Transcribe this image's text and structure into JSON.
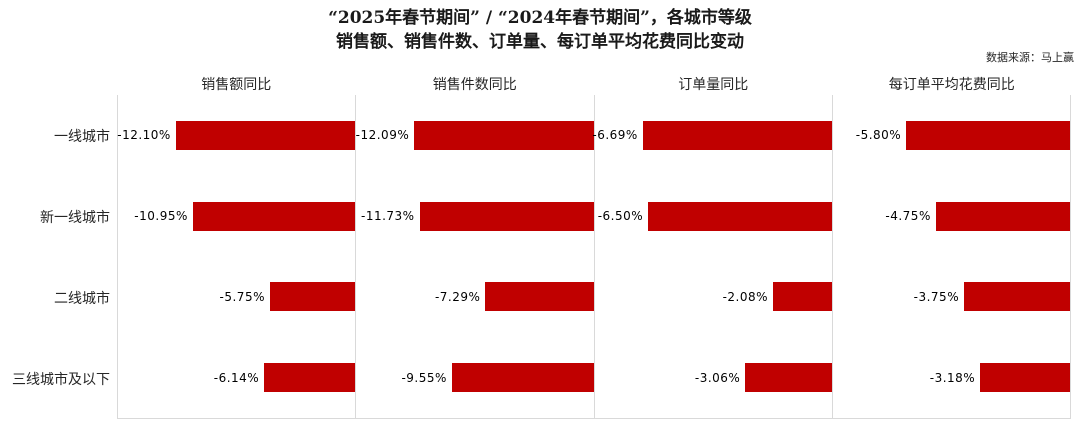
{
  "title": {
    "line1": "“2025年春节期间” / “2024年春节期间”，各城市等级",
    "line2": "销售额、销售件数、订单量、每订单平均花费同比变动"
  },
  "source": "数据来源：马上赢",
  "colors": {
    "bar": "#c00000",
    "grid": "#d9d9d9"
  },
  "chart_data": {
    "type": "bar",
    "orientation": "horizontal",
    "grid": "panel-borders-only",
    "value_label_position": "left-of-bar",
    "categories": [
      "一线城市",
      "新一线城市",
      "二线城市",
      "三线城市及以下"
    ],
    "panels": [
      {
        "title": "销售额同比",
        "values": [
          -12.1,
          -10.95,
          -5.75,
          -6.14
        ],
        "labels": [
          "-12.10%",
          "-10.95%",
          "-5.75%",
          "-6.14%"
        ],
        "xlim": [
          -16,
          0
        ]
      },
      {
        "title": "销售件数同比",
        "values": [
          -12.09,
          -11.73,
          -7.29,
          -9.55
        ],
        "labels": [
          "-12.09%",
          "-11.73%",
          "-7.29%",
          "-9.55%"
        ],
        "xlim": [
          -16,
          0
        ]
      },
      {
        "title": "订单量同比",
        "values": [
          -6.69,
          -6.5,
          -2.08,
          -3.06
        ],
        "labels": [
          "-6.69%",
          "-6.50%",
          "-2.08%",
          "-3.06%"
        ],
        "xlim": [
          -8.4,
          0
        ]
      },
      {
        "title": "每订单平均花费同比",
        "values": [
          -5.8,
          -4.75,
          -3.75,
          -3.18
        ],
        "labels": [
          "-5.80%",
          "-4.75%",
          "-3.75%",
          "-3.18%"
        ],
        "xlim": [
          -8.4,
          0
        ]
      }
    ]
  }
}
